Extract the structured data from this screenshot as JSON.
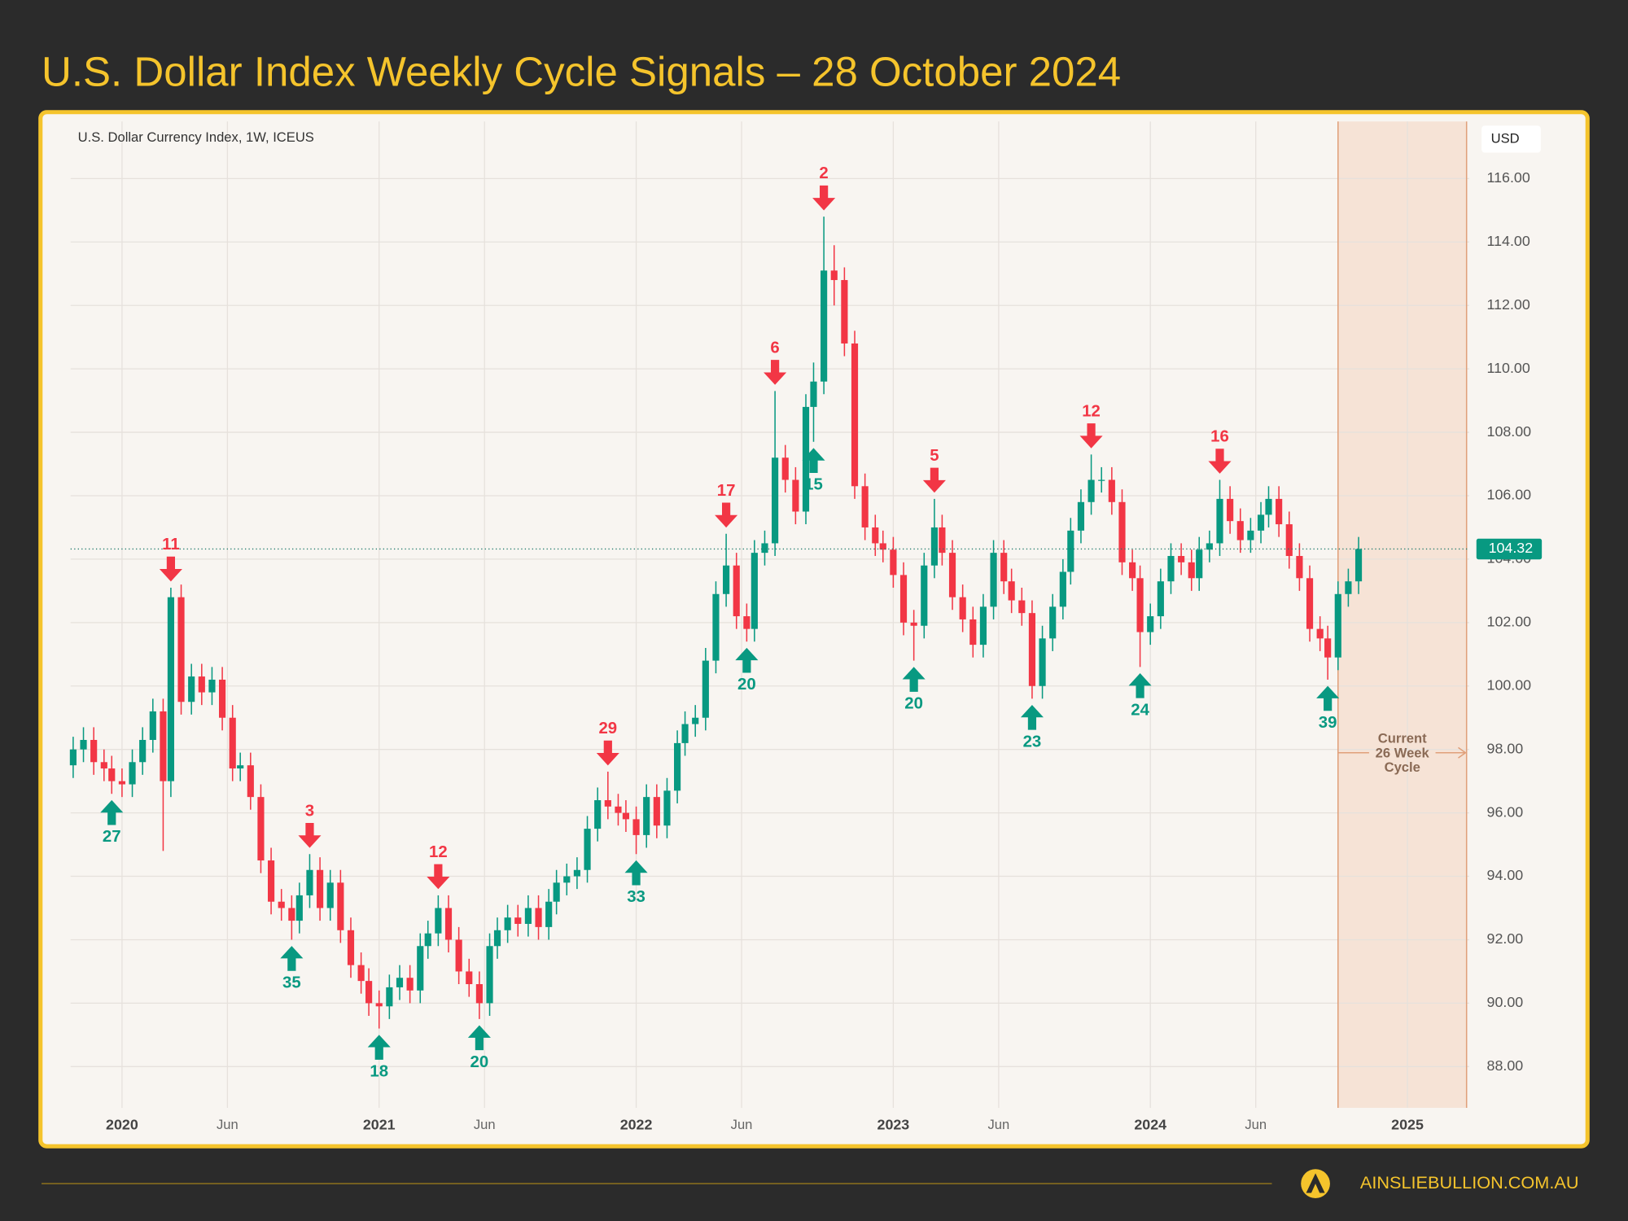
{
  "chart_data": {
    "type": "candlestick",
    "title": "U.S. Dollar Index Weekly Cycle Signals – 28 October 2024",
    "subtitle": "U.S. Dollar Currency Index, 1W, ICEUS",
    "currency": "USD",
    "footer": "AINSLIEBULLION.COM.AU",
    "colors": {
      "up": "#089981",
      "down": "#f23645"
    },
    "grid": true,
    "xlim": [
      2019.8,
      2025.24
    ],
    "ylim": [
      86.7,
      117.8
    ],
    "xticks": [
      2020,
      {
        "value": 2020.41,
        "label": "Jun"
      },
      2021,
      {
        "value": 2021.41,
        "label": "Jun"
      },
      2022,
      {
        "value": 2022.41,
        "label": "Jun"
      },
      2023,
      {
        "value": 2023.41,
        "label": "Jun"
      },
      2024,
      {
        "value": 2024.41,
        "label": "Jun"
      },
      2025
    ],
    "yticks": [
      {
        "value": 88,
        "label": "88.00"
      },
      {
        "value": 90,
        "label": "90.00"
      },
      {
        "value": 92,
        "label": "92.00"
      },
      {
        "value": 94,
        "label": "94.00"
      },
      {
        "value": 96,
        "label": "96.00"
      },
      {
        "value": 98,
        "label": "98.00"
      },
      {
        "value": 100,
        "label": "100.00"
      },
      {
        "value": 102,
        "label": "102.00"
      },
      {
        "value": 104,
        "label": "104.00"
      },
      {
        "value": 106,
        "label": "106.00"
      },
      {
        "value": 108,
        "label": "108.00"
      },
      {
        "value": 110,
        "label": "110.00"
      },
      {
        "value": 112,
        "label": "112.00"
      },
      {
        "value": 114,
        "label": "114.00"
      },
      {
        "value": 116,
        "label": "116.00"
      }
    ],
    "x": [
      2019.81,
      2019.85,
      2019.89,
      2019.93,
      2019.96,
      2020.0,
      2020.04,
      2020.08,
      2020.12,
      2020.16,
      2020.19,
      2020.23,
      2020.27,
      2020.31,
      2020.35,
      2020.39,
      2020.43,
      2020.46,
      2020.5,
      2020.54,
      2020.58,
      2020.62,
      2020.66,
      2020.69,
      2020.73,
      2020.77,
      2020.81,
      2020.85,
      2020.89,
      2020.93,
      2020.96,
      2021.0,
      2021.04,
      2021.08,
      2021.12,
      2021.16,
      2021.19,
      2021.23,
      2021.27,
      2021.31,
      2021.35,
      2021.39,
      2021.43,
      2021.46,
      2021.5,
      2021.54,
      2021.58,
      2021.62,
      2021.66,
      2021.69,
      2021.73,
      2021.77,
      2021.81,
      2021.85,
      2021.89,
      2021.93,
      2021.96,
      2022.0,
      2022.04,
      2022.08,
      2022.12,
      2022.16,
      2022.19,
      2022.23,
      2022.27,
      2022.31,
      2022.35,
      2022.39,
      2022.43,
      2022.46,
      2022.5,
      2022.54,
      2022.58,
      2022.62,
      2022.66,
      2022.69,
      2022.73,
      2022.77,
      2022.81,
      2022.85,
      2022.89,
      2022.93,
      2022.96,
      2023.0,
      2023.04,
      2023.08,
      2023.12,
      2023.16,
      2023.19,
      2023.23,
      2023.27,
      2023.31,
      2023.35,
      2023.39,
      2023.43,
      2023.46,
      2023.5,
      2023.54,
      2023.58,
      2023.62,
      2023.66,
      2023.69,
      2023.73,
      2023.77,
      2023.81,
      2023.85,
      2023.89,
      2023.93,
      2023.96,
      2024.0,
      2024.04,
      2024.08,
      2024.12,
      2024.16,
      2024.19,
      2024.23,
      2024.27,
      2024.31,
      2024.35,
      2024.39,
      2024.43,
      2024.46,
      2024.5,
      2024.54,
      2024.58,
      2024.62,
      2024.66,
      2024.69,
      2024.73,
      2024.77,
      2024.81
    ],
    "open": [
      97.5,
      98.0,
      98.3,
      97.6,
      97.4,
      97.0,
      96.9,
      97.6,
      98.3,
      99.2,
      97.0,
      102.8,
      99.5,
      100.3,
      99.8,
      100.2,
      99.0,
      97.4,
      97.5,
      96.5,
      94.5,
      93.2,
      93.0,
      92.6,
      93.4,
      94.2,
      93.0,
      93.8,
      92.3,
      91.2,
      90.7,
      90.0,
      89.9,
      90.5,
      90.8,
      90.4,
      91.8,
      92.2,
      93.0,
      92.0,
      91.0,
      90.6,
      90.0,
      91.8,
      92.3,
      92.7,
      92.5,
      93.0,
      92.4,
      93.2,
      93.8,
      94.0,
      94.2,
      95.5,
      96.4,
      96.2,
      96.0,
      95.8,
      95.3,
      96.5,
      95.6,
      96.7,
      98.2,
      98.8,
      99.0,
      100.8,
      102.9,
      103.8,
      102.2,
      101.8,
      104.2,
      104.5,
      107.2,
      106.5,
      105.5,
      108.8,
      109.6,
      113.1,
      112.8,
      110.8,
      106.3,
      105.0,
      104.5,
      104.3,
      103.5,
      102.0,
      101.9,
      103.8,
      105.0,
      104.2,
      102.8,
      102.1,
      101.3,
      102.5,
      104.2,
      103.3,
      102.7,
      102.3,
      100.0,
      101.5,
      102.5,
      103.6,
      104.9,
      105.8,
      106.5,
      106.5,
      105.8,
      103.9,
      103.4,
      101.7,
      102.2,
      103.3,
      104.1,
      103.9,
      103.4,
      104.3,
      104.5,
      105.9,
      105.2,
      104.6,
      104.9,
      105.4,
      105.9,
      105.1,
      104.1,
      103.4,
      101.8,
      101.5,
      100.9,
      102.9,
      103.3
    ],
    "high": [
      98.4,
      98.7,
      98.7,
      98.0,
      97.8,
      97.4,
      98.0,
      98.7,
      99.6,
      99.6,
      103.1,
      103.2,
      100.7,
      100.7,
      100.6,
      100.6,
      99.4,
      97.9,
      97.9,
      96.9,
      94.9,
      93.6,
      93.4,
      93.8,
      94.7,
      94.6,
      94.2,
      94.2,
      92.7,
      91.6,
      91.1,
      90.4,
      90.9,
      91.2,
      91.2,
      92.2,
      92.6,
      93.4,
      93.4,
      92.4,
      91.4,
      91.0,
      92.2,
      92.7,
      93.1,
      93.1,
      93.4,
      93.4,
      93.6,
      94.2,
      94.4,
      94.6,
      95.9,
      96.8,
      97.3,
      96.6,
      96.4,
      96.2,
      96.9,
      96.9,
      97.1,
      98.6,
      99.2,
      99.4,
      101.2,
      103.3,
      104.8,
      104.2,
      102.6,
      104.6,
      104.9,
      109.3,
      107.6,
      106.9,
      109.2,
      110.2,
      114.8,
      113.9,
      113.2,
      111.2,
      106.7,
      105.4,
      104.9,
      104.7,
      103.9,
      102.4,
      104.2,
      105.9,
      105.4,
      104.6,
      103.2,
      102.5,
      102.9,
      104.6,
      104.6,
      103.7,
      103.1,
      102.7,
      101.9,
      102.9,
      104.0,
      105.3,
      106.2,
      107.3,
      106.9,
      106.9,
      106.2,
      104.3,
      103.8,
      102.6,
      103.7,
      104.5,
      104.5,
      104.3,
      104.7,
      104.9,
      106.5,
      106.3,
      105.6,
      105.3,
      105.8,
      106.3,
      106.3,
      105.5,
      104.5,
      103.8,
      102.2,
      101.9,
      103.3,
      103.7,
      104.7
    ],
    "low": [
      97.1,
      97.6,
      97.2,
      97.0,
      96.6,
      96.5,
      96.5,
      97.2,
      97.9,
      94.8,
      96.5,
      99.1,
      99.1,
      99.4,
      99.4,
      98.6,
      97.0,
      97.0,
      96.1,
      94.1,
      92.8,
      92.6,
      92.0,
      92.2,
      93.0,
      92.6,
      92.6,
      91.9,
      90.8,
      90.3,
      89.6,
      89.2,
      89.5,
      90.1,
      90.0,
      90.0,
      91.4,
      91.8,
      91.6,
      90.6,
      90.2,
      89.5,
      89.6,
      91.4,
      91.9,
      92.1,
      92.1,
      92.0,
      92.0,
      92.8,
      93.4,
      93.6,
      93.8,
      95.1,
      95.8,
      95.6,
      95.4,
      94.7,
      94.9,
      95.2,
      95.2,
      96.3,
      97.8,
      98.4,
      98.6,
      100.4,
      102.5,
      101.8,
      101.4,
      101.4,
      103.8,
      104.1,
      106.1,
      105.1,
      105.1,
      107.7,
      109.2,
      112.0,
      110.4,
      105.9,
      104.6,
      104.1,
      103.9,
      103.1,
      101.6,
      100.8,
      101.5,
      103.4,
      103.8,
      102.4,
      101.7,
      100.9,
      100.9,
      102.1,
      102.9,
      102.3,
      101.9,
      99.6,
      99.6,
      101.1,
      102.1,
      103.2,
      104.5,
      105.4,
      106.1,
      105.4,
      103.5,
      103.0,
      100.6,
      101.3,
      101.8,
      102.9,
      103.5,
      103.0,
      103.0,
      103.9,
      104.1,
      104.8,
      104.2,
      104.2,
      104.5,
      105.0,
      104.7,
      103.7,
      103.0,
      101.4,
      101.1,
      100.2,
      100.5,
      102.5,
      102.9
    ],
    "close": [
      98.0,
      98.3,
      97.6,
      97.4,
      97.0,
      96.9,
      97.6,
      98.3,
      99.2,
      97.0,
      102.8,
      99.5,
      100.3,
      99.8,
      100.2,
      99.0,
      97.4,
      97.5,
      96.5,
      94.5,
      93.2,
      93.0,
      92.6,
      93.4,
      94.2,
      93.0,
      93.8,
      92.3,
      91.2,
      90.7,
      90.0,
      89.9,
      90.5,
      90.8,
      90.4,
      91.8,
      92.2,
      93.0,
      92.0,
      91.0,
      90.6,
      90.0,
      91.8,
      92.3,
      92.7,
      92.5,
      93.0,
      92.4,
      93.2,
      93.8,
      94.0,
      94.2,
      95.5,
      96.4,
      96.2,
      96.0,
      95.8,
      95.3,
      96.5,
      95.6,
      96.7,
      98.2,
      98.8,
      99.0,
      100.8,
      102.9,
      103.8,
      102.2,
      101.8,
      104.2,
      104.5,
      107.2,
      106.5,
      105.5,
      108.8,
      109.6,
      113.1,
      112.8,
      110.8,
      106.3,
      105.0,
      104.5,
      104.3,
      103.5,
      102.0,
      101.9,
      103.8,
      105.0,
      104.2,
      102.8,
      102.1,
      101.3,
      102.5,
      104.2,
      103.3,
      102.7,
      102.3,
      100.0,
      101.5,
      102.5,
      103.6,
      104.9,
      105.8,
      106.5,
      106.5,
      105.8,
      103.9,
      103.4,
      101.7,
      102.2,
      103.3,
      104.1,
      103.9,
      103.4,
      104.3,
      104.5,
      105.9,
      105.2,
      104.6,
      104.9,
      105.4,
      105.9,
      105.1,
      104.1,
      103.4,
      101.8,
      101.5,
      100.9,
      102.9,
      103.3,
      104.32
    ],
    "signals": [
      {
        "label": 27,
        "x": 2019.96,
        "direction": "up"
      },
      {
        "label": 11,
        "x": 2020.19,
        "direction": "down"
      },
      {
        "label": 35,
        "x": 2020.66,
        "direction": "up"
      },
      {
        "label": 3,
        "x": 2020.73,
        "direction": "down"
      },
      {
        "label": 18,
        "x": 2021.0,
        "direction": "up"
      },
      {
        "label": 12,
        "x": 2021.23,
        "direction": "down"
      },
      {
        "label": 20,
        "x": 2021.39,
        "direction": "up"
      },
      {
        "label": 29,
        "x": 2021.89,
        "direction": "down"
      },
      {
        "label": 33,
        "x": 2022.0,
        "direction": "up"
      },
      {
        "label": 17,
        "x": 2022.35,
        "direction": "down"
      },
      {
        "label": 20,
        "x": 2022.43,
        "direction": "up"
      },
      {
        "label": 6,
        "x": 2022.54,
        "direction": "down"
      },
      {
        "label": 15,
        "x": 2022.69,
        "direction": "up"
      },
      {
        "label": 2,
        "x": 2022.73,
        "direction": "down"
      },
      {
        "label": 20,
        "x": 2023.08,
        "direction": "up"
      },
      {
        "label": 5,
        "x": 2023.16,
        "direction": "down"
      },
      {
        "label": 23,
        "x": 2023.54,
        "direction": "up"
      },
      {
        "label": 12,
        "x": 2023.77,
        "direction": "down"
      },
      {
        "label": 24,
        "x": 2023.96,
        "direction": "up"
      },
      {
        "label": 16,
        "x": 2024.27,
        "direction": "down"
      },
      {
        "label": 39,
        "x": 2024.69,
        "direction": "up"
      }
    ],
    "cycle": {
      "lines": [
        "Current",
        "26 Week",
        "Cycle"
      ],
      "x": [
        2024.73,
        2025.23
      ]
    }
  }
}
